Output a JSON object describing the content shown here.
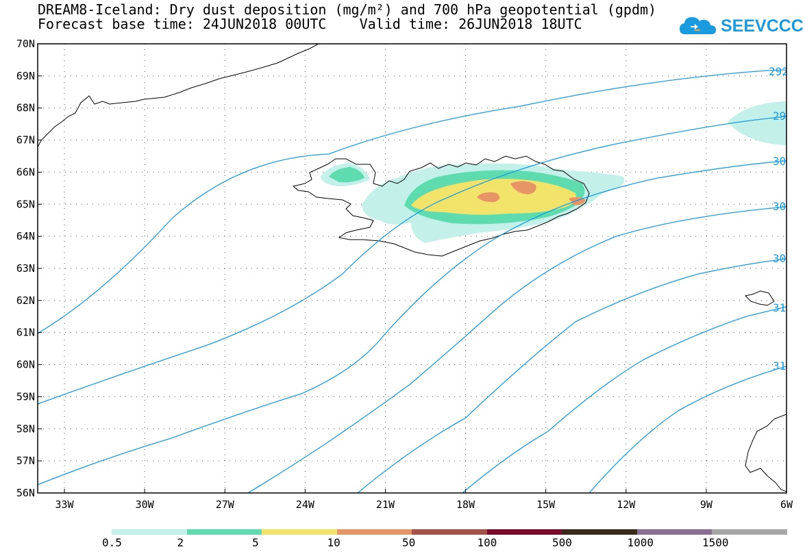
{
  "title": {
    "line1": "DREAM8-Iceland: Dry dust deposition (mg/m²) and 700 hPa geopotential (gpdm)",
    "line2": "Forecast base time: 24JUN2018 00UTC    Valid time: 26JUN2018 18UTC"
  },
  "logo": {
    "text": "SEEVCCC",
    "color": "#1a9be0"
  },
  "map": {
    "lon_range": [
      -34,
      -6
    ],
    "lat_range": [
      56,
      70
    ],
    "lon_ticks": [
      "33W",
      "30W",
      "27W",
      "24W",
      "21W",
      "18W",
      "15W",
      "12W",
      "9W",
      "6W"
    ],
    "lat_ticks": [
      "56N",
      "57N",
      "58N",
      "59N",
      "60N",
      "61N",
      "62N",
      "63N",
      "64N",
      "65N",
      "66N",
      "67N",
      "68N",
      "69N",
      "70N"
    ],
    "grid": "dotted",
    "contour_color": "#1a9be0",
    "contour_labels": [
      "292",
      "29",
      "30",
      "30",
      "30",
      "31",
      "31"
    ]
  },
  "colorbar": {
    "ticks": [
      "0.5",
      "2",
      "5",
      "10",
      "50",
      "100",
      "500",
      "1000",
      "1500"
    ],
    "colors": [
      "#c3f0e8",
      "#5edcb0",
      "#f2e46a",
      "#e89565",
      "#a65248",
      "#7c0a2d",
      "#3b2a1a",
      "#8a6e96",
      "#a6a6a6"
    ]
  }
}
